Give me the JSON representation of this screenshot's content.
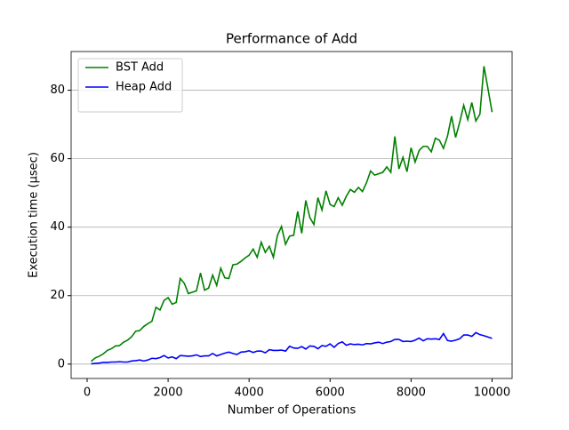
{
  "chart_data": {
    "type": "line",
    "title": "Performance of Add",
    "x_label": "Number of Operations",
    "y_label": "Execution time (μsec)",
    "x": [
      100,
      200,
      300,
      400,
      500,
      600,
      700,
      800,
      900,
      1000,
      1100,
      1200,
      1300,
      1400,
      1500,
      1600,
      1700,
      1800,
      1900,
      2000,
      2100,
      2200,
      2300,
      2400,
      2500,
      2600,
      2700,
      2800,
      2900,
      3000,
      3100,
      3200,
      3300,
      3400,
      3500,
      3600,
      3700,
      3800,
      3900,
      4000,
      4100,
      4200,
      4300,
      4400,
      4500,
      4600,
      4700,
      4800,
      4900,
      5000,
      5100,
      5200,
      5300,
      5400,
      5500,
      5600,
      5700,
      5800,
      5900,
      6000,
      6100,
      6200,
      6300,
      6400,
      6500,
      6600,
      6700,
      6800,
      6900,
      7000,
      7100,
      7200,
      7300,
      7400,
      7500,
      7600,
      7700,
      7800,
      7900,
      8000,
      8100,
      8200,
      8300,
      8400,
      8500,
      8600,
      8700,
      8800,
      8900,
      9000,
      9100,
      9200,
      9300,
      9400,
      9500,
      9600,
      9700,
      9800,
      9900,
      10000
    ],
    "series": [
      {
        "name": "BST Add",
        "color": "#008000",
        "values": [
          0.8,
          1.8,
          2.3,
          3.0,
          4.0,
          4.5,
          5.3,
          5.4,
          6.4,
          7.0,
          8.0,
          9.6,
          9.8,
          11.0,
          11.8,
          12.5,
          16.6,
          15.8,
          18.6,
          19.4,
          17.5,
          18.0,
          25.0,
          23.6,
          20.6,
          21.0,
          21.4,
          26.6,
          21.6,
          22.2,
          26.0,
          23.0,
          28.0,
          25.2,
          25.0,
          29.0,
          29.2,
          30.0,
          31.0,
          31.8,
          33.6,
          31.2,
          35.6,
          32.6,
          34.4,
          31.2,
          37.6,
          40.2,
          35.0,
          37.4,
          37.6,
          44.6,
          38.2,
          47.8,
          42.8,
          40.8,
          48.6,
          45.0,
          50.6,
          46.6,
          46.0,
          48.6,
          46.4,
          49.0,
          51.0,
          50.2,
          51.6,
          50.4,
          53.0,
          56.4,
          55.2,
          55.6,
          56.0,
          57.6,
          56.0,
          66.5,
          57.0,
          60.4,
          56.2,
          63.2,
          59.0,
          62.4,
          63.6,
          63.6,
          62.0,
          66.0,
          65.4,
          63.0,
          66.6,
          72.4,
          66.2,
          70.6,
          75.6,
          71.4,
          76.4,
          71.0,
          73.0,
          87.0,
          80.4,
          73.6
        ]
      },
      {
        "name": "Heap Add",
        "color": "#0000ff",
        "values": [
          0.1,
          0.2,
          0.3,
          0.5,
          0.5,
          0.6,
          0.6,
          0.7,
          0.6,
          0.6,
          0.9,
          1.0,
          1.2,
          0.9,
          1.2,
          1.7,
          1.6,
          1.9,
          2.5,
          1.8,
          2.1,
          1.6,
          2.5,
          2.4,
          2.3,
          2.4,
          2.7,
          2.2,
          2.4,
          2.4,
          3.1,
          2.4,
          2.8,
          3.2,
          3.5,
          3.1,
          2.8,
          3.5,
          3.6,
          3.9,
          3.4,
          3.8,
          3.8,
          3.3,
          4.2,
          4.0,
          4.0,
          4.1,
          3.8,
          5.2,
          4.7,
          4.6,
          5.1,
          4.4,
          5.3,
          5.2,
          4.5,
          5.4,
          5.2,
          5.9,
          4.9,
          6.0,
          6.5,
          5.5,
          5.9,
          5.7,
          5.8,
          5.6,
          6.0,
          5.9,
          6.2,
          6.4,
          6.0,
          6.4,
          6.6,
          7.2,
          7.2,
          6.6,
          6.7,
          6.6,
          7.0,
          7.6,
          6.8,
          7.4,
          7.3,
          7.4,
          7.2,
          8.9,
          6.9,
          6.7,
          7.0,
          7.4,
          8.5,
          8.5,
          8.1,
          9.2,
          8.6,
          8.3,
          7.9,
          7.5
        ]
      }
    ],
    "xlim": [
      -395,
      10495
    ],
    "ylim": [
      -4.2,
      91.3
    ],
    "xticks": [
      0,
      2000,
      4000,
      6000,
      8000,
      10000
    ],
    "yticks": [
      0,
      20,
      40,
      60,
      80
    ],
    "grid": "y",
    "legend": "upper-left"
  }
}
